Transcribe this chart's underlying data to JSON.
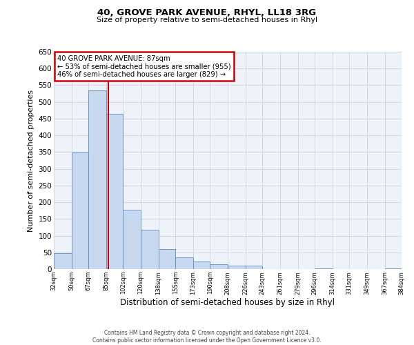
{
  "title": "40, GROVE PARK AVENUE, RHYL, LL18 3RG",
  "subtitle": "Size of property relative to semi-detached houses in Rhyl",
  "xlabel": "Distribution of semi-detached houses by size in Rhyl",
  "ylabel": "Number of semi-detached properties",
  "bar_edges": [
    32,
    50,
    67,
    85,
    102,
    120,
    138,
    155,
    173,
    190,
    208,
    226,
    243,
    261,
    279,
    296,
    314,
    331,
    349,
    367,
    384
  ],
  "bar_heights": [
    47,
    348,
    535,
    465,
    178,
    118,
    60,
    35,
    22,
    15,
    11,
    10,
    1,
    0,
    0,
    2,
    0,
    1,
    0,
    3
  ],
  "bar_color": "#c8d9ef",
  "bar_edgecolor": "#5b8ec4",
  "property_value": 87,
  "annotation_title": "40 GROVE PARK AVENUE: 87sqm",
  "annotation_line1": "← 53% of semi-detached houses are smaller (955)",
  "annotation_line2": "46% of semi-detached houses are larger (829) →",
  "annotation_box_edgecolor": "#cc0000",
  "property_line_color": "#cc0000",
  "ylim": [
    0,
    650
  ],
  "yticks": [
    0,
    50,
    100,
    150,
    200,
    250,
    300,
    350,
    400,
    450,
    500,
    550,
    600,
    650
  ],
  "xlabels": [
    "32sqm",
    "50sqm",
    "67sqm",
    "85sqm",
    "102sqm",
    "120sqm",
    "138sqm",
    "155sqm",
    "173sqm",
    "190sqm",
    "208sqm",
    "226sqm",
    "243sqm",
    "261sqm",
    "279sqm",
    "296sqm",
    "314sqm",
    "331sqm",
    "349sqm",
    "367sqm",
    "384sqm"
  ],
  "grid_color": "#d0d8e8",
  "bg_color": "#eef2f9",
  "footer_line1": "Contains HM Land Registry data © Crown copyright and database right 2024.",
  "footer_line2": "Contains public sector information licensed under the Open Government Licence v3.0."
}
